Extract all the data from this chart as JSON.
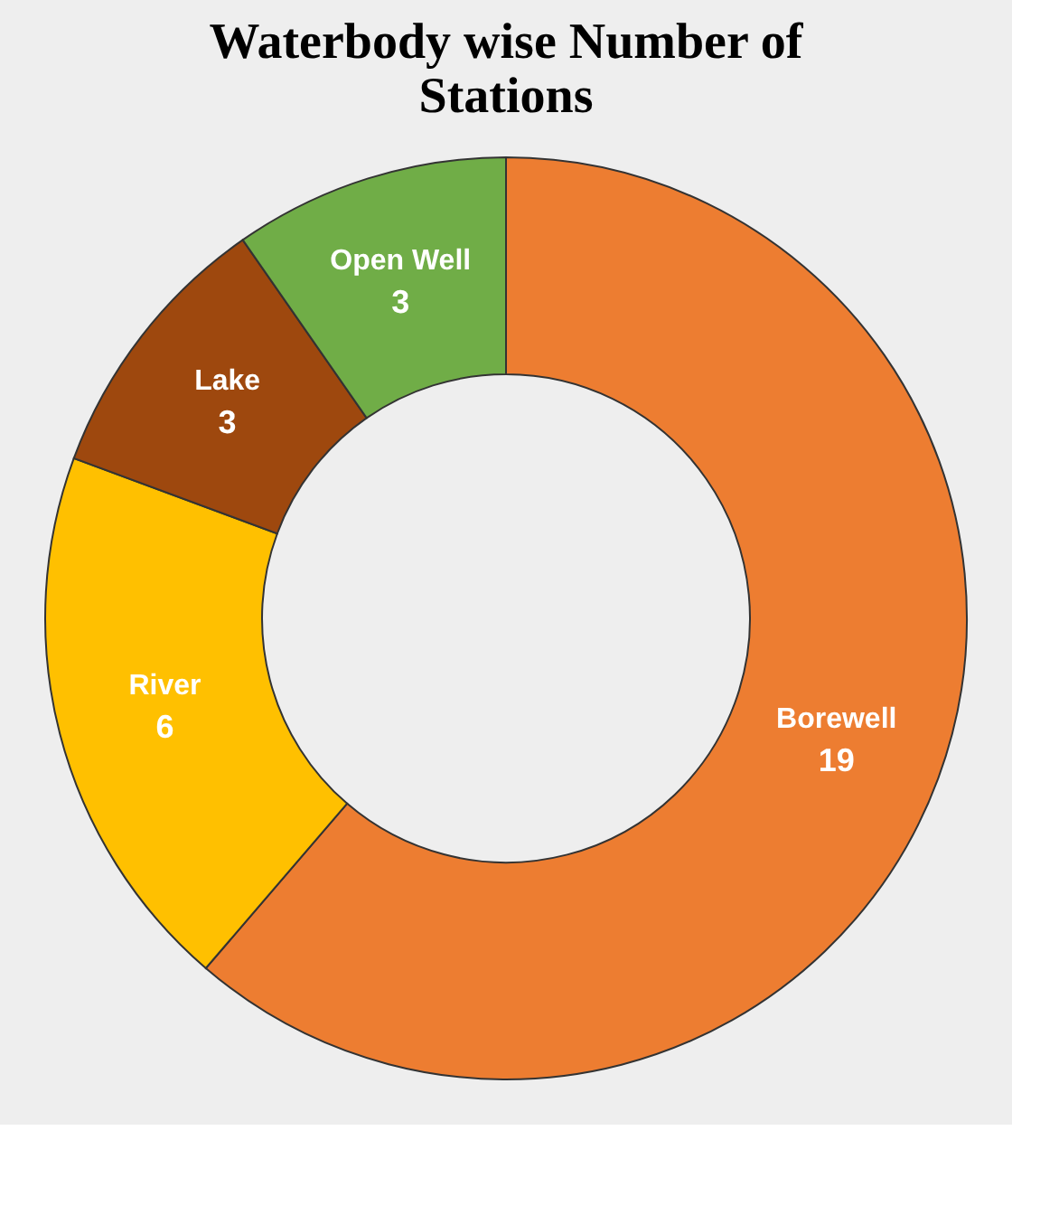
{
  "chart_data": {
    "type": "donut",
    "title": "Waterbody wise Number of Stations",
    "categories": [
      "Borewell",
      "River",
      "Lake",
      "Open Well"
    ],
    "values": [
      19,
      6,
      3,
      3
    ],
    "colors": [
      "#ed7d31",
      "#ffc000",
      "#9e480e",
      "#70ad47"
    ],
    "data_labels": true,
    "legend": false
  }
}
